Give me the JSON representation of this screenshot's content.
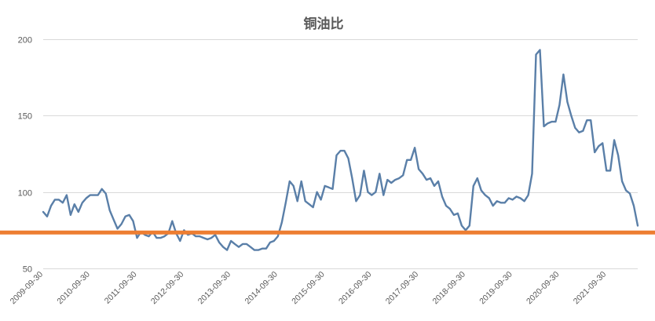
{
  "chart_data": {
    "type": "line",
    "title": "铜油比",
    "xlabel": "",
    "ylabel": "",
    "ylim": [
      50,
      200
    ],
    "yticks": [
      50,
      100,
      150,
      200
    ],
    "xlim": [
      0,
      152
    ],
    "xtick_labels": [
      "2009-09-30",
      "2010-09-30",
      "2011-09-30",
      "2012-09-30",
      "2013-09-30",
      "2014-09-30",
      "2015-09-30",
      "2016-09-30",
      "2017-09-30",
      "2018-09-30",
      "2019-09-30",
      "2020-09-30",
      "2021-09-30"
    ],
    "xtick_positions": [
      0,
      12,
      24,
      36,
      48,
      60,
      72,
      84,
      96,
      108,
      120,
      132,
      144
    ],
    "grid": {
      "horizontal": true,
      "vertical": false
    },
    "legend": "none",
    "series": [
      {
        "color": "#5a7fa8",
        "x": [
          0,
          1,
          2,
          3,
          4,
          5,
          6,
          7,
          8,
          9,
          10,
          11,
          12,
          13,
          14,
          15,
          16,
          17,
          18,
          19,
          20,
          21,
          22,
          23,
          24,
          25,
          26,
          27,
          28,
          29,
          30,
          31,
          32,
          33,
          34,
          35,
          36,
          37,
          38,
          39,
          40,
          41,
          42,
          43,
          44,
          45,
          46,
          47,
          48,
          49,
          50,
          51,
          52,
          53,
          54,
          55,
          56,
          57,
          58,
          59,
          60,
          61,
          62,
          63,
          64,
          65,
          66,
          67,
          68,
          69,
          70,
          71,
          72,
          73,
          74,
          75,
          76,
          77,
          78,
          79,
          80,
          81,
          82,
          83,
          84,
          85,
          86,
          87,
          88,
          89,
          90,
          91,
          92,
          93,
          94,
          95,
          96,
          97,
          98,
          99,
          100,
          101,
          102,
          103,
          104,
          105,
          106,
          107,
          108,
          109,
          110,
          111,
          112,
          113,
          114,
          115,
          116,
          117,
          118,
          119,
          120,
          121,
          122,
          123,
          124,
          125,
          126,
          127,
          128,
          129,
          130,
          131,
          132,
          133,
          134,
          135,
          136,
          137,
          138,
          139,
          140,
          141,
          142,
          143,
          144,
          145,
          146,
          147,
          148,
          149,
          150,
          151,
          152
        ],
        "y": [
          87,
          84,
          91,
          95,
          95,
          93,
          98,
          85,
          92,
          87,
          93,
          96,
          98,
          98,
          98,
          102,
          99,
          88,
          82,
          76,
          79,
          84,
          85,
          81,
          70,
          74,
          72,
          71,
          74,
          70,
          70,
          71,
          73,
          81,
          73,
          68,
          75,
          72,
          73,
          71,
          71,
          70,
          69,
          70,
          72,
          67,
          64,
          62,
          68,
          66,
          64,
          66,
          66,
          64,
          62,
          62,
          63,
          63,
          67,
          68,
          71,
          80,
          93,
          107,
          104,
          94,
          107,
          94,
          92,
          90,
          100,
          95,
          104,
          103,
          102,
          124,
          127,
          127,
          122,
          109,
          94,
          98,
          114,
          100,
          98,
          100,
          112,
          98,
          108,
          106,
          108,
          109,
          111,
          121,
          121,
          129,
          115,
          112,
          108,
          109,
          104,
          107,
          97,
          91,
          89,
          85,
          86,
          78,
          75,
          78,
          104,
          109,
          101,
          98,
          96,
          91,
          94,
          93,
          93,
          96,
          95,
          97,
          96,
          94,
          98,
          112,
          190,
          193,
          143,
          145,
          146,
          146,
          157,
          177,
          159,
          150,
          142,
          139,
          140,
          147,
          147,
          126,
          130,
          132,
          114,
          114,
          134,
          124,
          107,
          101,
          99,
          91,
          78
        ]
      }
    ],
    "reference_line": {
      "y": 73.5,
      "color": "#ed7d31"
    }
  }
}
